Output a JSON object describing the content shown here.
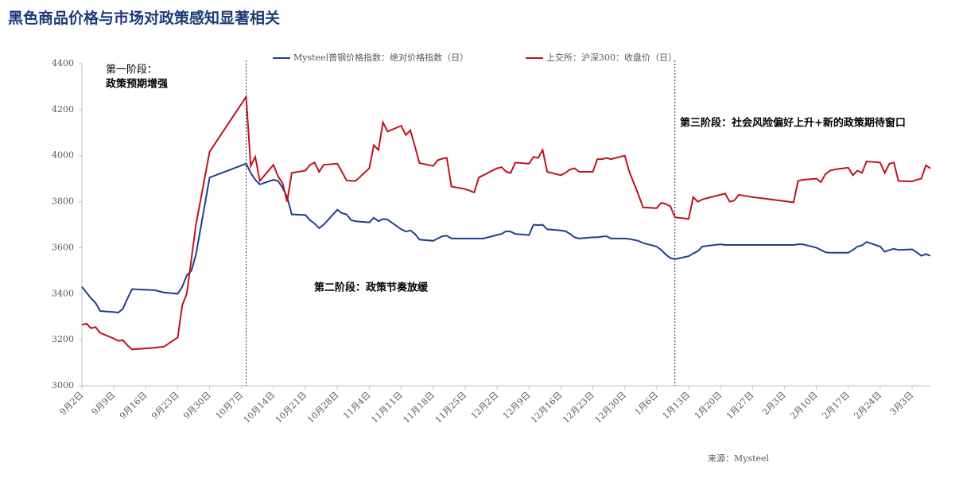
{
  "chart_data": {
    "type": "line",
    "title": "黑色商品价格与市场对政策感知显著相关",
    "x": [
      "9月2日",
      "9月3日",
      "9月4日",
      "9月5日",
      "9月6日",
      "9月9日",
      "9月10日",
      "9月11日",
      "9月12日",
      "9月13日",
      "9月18日",
      "9月19日",
      "9月20日",
      "9月23日",
      "9月24日",
      "9月25日",
      "9月26日",
      "9月27日",
      "9月30日",
      "10月8日",
      "10月9日",
      "10月10日",
      "10月11日",
      "10月14日",
      "10月15日",
      "10月16日",
      "10月17日",
      "10月18日",
      "10月21日",
      "10月22日",
      "10月23日",
      "10月24日",
      "10月25日",
      "10月28日",
      "10月29日",
      "10月30日",
      "10月31日",
      "11月1日",
      "11月4日",
      "11月5日",
      "11月6日",
      "11月7日",
      "11月8日",
      "11月11日",
      "11月12日",
      "11月13日",
      "11月14日",
      "11月15日",
      "11月18日",
      "11月19日",
      "11月20日",
      "11月21日",
      "11月22日",
      "11月25日",
      "11月26日",
      "11月27日",
      "11月28日",
      "11月29日",
      "12月2日",
      "12月3日",
      "12月4日",
      "12月5日",
      "12月6日",
      "12月9日",
      "12月10日",
      "12月11日",
      "12月12日",
      "12月13日",
      "12月16日",
      "12月17日",
      "12月18日",
      "12月19日",
      "12月20日",
      "12月23日",
      "12月24日",
      "12月25日",
      "12月26日",
      "12月27日",
      "12月30日",
      "12月31日",
      "1月2日",
      "1月3日",
      "1月6日",
      "1月7日",
      "1月8日",
      "1月9日",
      "1月10日",
      "1月13日",
      "1月14日",
      "1月15日",
      "1月16日",
      "1月17日",
      "1月20日",
      "1月21日",
      "1月22日",
      "1月23日",
      "1月24日",
      "1月27日",
      "2月5日",
      "2月6日",
      "2月7日",
      "2月10日",
      "2月11日",
      "2月12日",
      "2月13日",
      "2月14日",
      "2月17日",
      "2月18日",
      "2月19日",
      "2月20日",
      "2月21日",
      "2月24日",
      "2月25日",
      "2月26日",
      "2月27日",
      "2月28日",
      "3月3日",
      "3月4日",
      "3月5日",
      "3月6日",
      "3月7日"
    ],
    "series": [
      {
        "name": "Mysteel普钢价格指数：绝对价格指数（日）",
        "color": "#1f3f8a",
        "values": [
          3430,
          3405,
          3380,
          3360,
          3325,
          3320,
          3318,
          3335,
          3380,
          3420,
          3415,
          3410,
          3405,
          3400,
          3430,
          3480,
          3500,
          3570,
          3905,
          3965,
          3925,
          3895,
          3875,
          3895,
          3890,
          3860,
          3820,
          3745,
          3742,
          3720,
          3705,
          3685,
          3700,
          3765,
          3750,
          3745,
          3720,
          3715,
          3710,
          3730,
          3715,
          3725,
          3722,
          3680,
          3670,
          3675,
          3660,
          3635,
          3630,
          3640,
          3650,
          3652,
          3640,
          3640,
          3640,
          3640,
          3640,
          3640,
          3655,
          3660,
          3672,
          3670,
          3660,
          3655,
          3700,
          3698,
          3700,
          3680,
          3675,
          3672,
          3660,
          3645,
          3640,
          3645,
          3645,
          3648,
          3650,
          3640,
          3640,
          3638,
          3630,
          3620,
          3605,
          3590,
          3570,
          3555,
          3550,
          3563,
          3575,
          3585,
          3605,
          3608,
          3615,
          3612,
          3612,
          3612,
          3612,
          3612,
          3612,
          3615,
          3615,
          3600,
          3590,
          3580,
          3578,
          3578,
          3578,
          3590,
          3605,
          3610,
          3625,
          3605,
          3582,
          3590,
          3595,
          3590,
          3593,
          3580,
          3565,
          3572,
          3565
        ]
      },
      {
        "name": "上交所：沪深300：收盘价（日）",
        "color": "#c0111f",
        "values": [
          3265,
          3270,
          3250,
          3255,
          3230,
          3205,
          3195,
          3198,
          3175,
          3158,
          3165,
          3168,
          3170,
          3210,
          3350,
          3400,
          3550,
          3700,
          4017,
          4256,
          3955,
          3995,
          3890,
          3960,
          3910,
          3880,
          3800,
          3925,
          3935,
          3960,
          3970,
          3930,
          3960,
          3965,
          3930,
          3893,
          3890,
          3890,
          3945,
          4045,
          4025,
          4145,
          4105,
          4130,
          4090,
          4110,
          4040,
          3968,
          3955,
          3980,
          3987,
          3990,
          3866,
          3855,
          3848,
          3840,
          3905,
          3915,
          3945,
          3950,
          3930,
          3925,
          3970,
          3965,
          3995,
          3990,
          4025,
          3930,
          3915,
          3925,
          3940,
          3945,
          3930,
          3930,
          3985,
          3985,
          3990,
          3985,
          4000,
          3930,
          3830,
          3775,
          3772,
          3795,
          3790,
          3780,
          3732,
          3725,
          3820,
          3800,
          3810,
          3815,
          3830,
          3835,
          3800,
          3805,
          3830,
          3820,
          3797,
          3890,
          3895,
          3900,
          3885,
          3920,
          3935,
          3940,
          3948,
          3915,
          3935,
          3925,
          3975,
          3970,
          3925,
          3965,
          3970,
          3890,
          3888,
          3895,
          3900,
          3958,
          3945
        ]
      }
    ],
    "xlim": [
      "9月2日",
      "3月7日"
    ],
    "xticks": [
      "9月2日",
      "9月9日",
      "9月16日",
      "9月23日",
      "9月30日",
      "10月7日",
      "10月14日",
      "10月21日",
      "10月28日",
      "11月4日",
      "11月11日",
      "11月18日",
      "11月25日",
      "12月2日",
      "12月9日",
      "12月16日",
      "12月23日",
      "12月30日",
      "1月6日",
      "1月13日",
      "1月20日",
      "1月27日",
      "2月3日",
      "2月10日",
      "2月17日",
      "2月24日",
      "3月3日"
    ],
    "ylim": [
      3000,
      4400
    ],
    "yticks": [
      3000,
      3200,
      3400,
      3600,
      3800,
      4000,
      4200,
      4400
    ],
    "phase_lines": [
      "10月8日",
      "1月10日"
    ],
    "annotations": [
      "第一阶段：",
      "政策预期增强",
      "第二阶段：政策节奏放缓",
      "第三阶段：社会风险偏好上升+新的政策期待窗口"
    ],
    "source": "来源：Mysteel"
  }
}
